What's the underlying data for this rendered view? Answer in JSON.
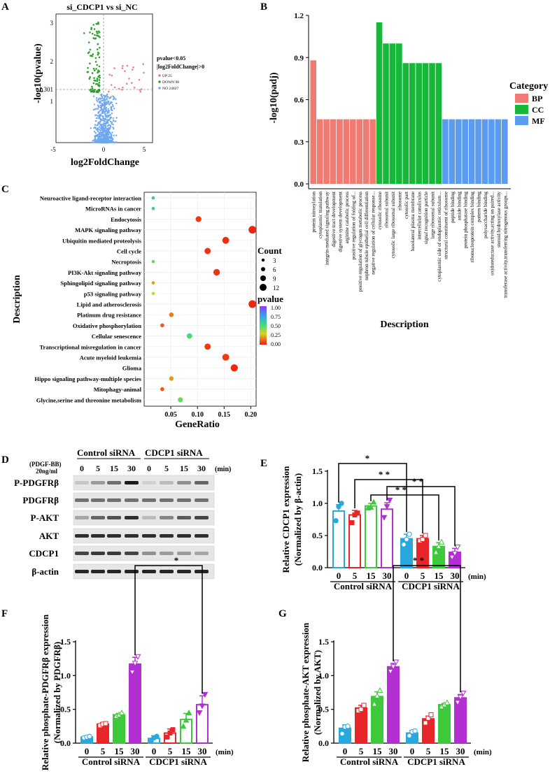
{
  "figure": {
    "panels": {
      "a": "A",
      "b": "B",
      "c": "C",
      "d": "D",
      "e": "E",
      "f": "F",
      "g": "G"
    },
    "time_unit": "(min)",
    "time_labels": [
      "0",
      "5",
      "15",
      "30",
      "0",
      "5",
      "15",
      "30"
    ],
    "group_labels": [
      "Control siRNA",
      "CDCP1 siRNA"
    ]
  },
  "panel_a": {
    "title": "si_CDCP1 vs si_NC",
    "xlabel": "log2FoldChange",
    "ylabel": "-log10(pvalue)",
    "xticks": [
      "-5",
      "0",
      "5"
    ],
    "yticks": [
      "1",
      "1.301",
      "2",
      "3"
    ],
    "legend_title_1": "pvalue<0.05",
    "legend_title_2": "|log2FoldChange|>0",
    "legend": [
      {
        "label": "UP 25",
        "color": "#f08080"
      },
      {
        "label": "DOWN 98",
        "color": "#2ca02c"
      },
      {
        "label": "NO 24827",
        "color": "#6fa8ef"
      }
    ]
  },
  "panel_b": {
    "ylabel": "-log10(padj)",
    "xlabel": "Description",
    "legend_title": "Category",
    "legend": [
      {
        "label": "BP",
        "color": "#f07b72"
      },
      {
        "label": "CC",
        "color": "#17b83a"
      },
      {
        "label": "MF",
        "color": "#5b9cf0"
      }
    ]
  },
  "panel_c": {
    "ylabel": "Description",
    "xlabel": "GeneRatio",
    "count_title": "Count",
    "count_labels": [
      "3",
      "6",
      "9",
      "12"
    ],
    "pvalue_title": "pvalue",
    "pvalue_ticks": [
      "1.00",
      "0.75",
      "0.50",
      "0.25",
      "0.00"
    ]
  },
  "panel_d": {
    "treatment_label": "(PDGF-BB)",
    "dose_label": "20ng/ml",
    "rows": [
      "P-PDGFRβ",
      "PDGFRβ",
      "P-AKT",
      "AKT",
      "CDCP1",
      "β-actin"
    ]
  },
  "panel_e": {
    "ylabel_1": "Relative CDCP1 expression",
    "ylabel_2": "(Normalized by β-actin)"
  },
  "panel_f": {
    "ylabel_1": "Relative phosphate-PDGFRβ expression",
    "ylabel_2": "(Normalized by PDGFRβ)"
  },
  "panel_g": {
    "ylabel_1": "Relative phosphate-AKT expression",
    "ylabel_2": "(Normalized by AKT)"
  },
  "chart_data": [
    {
      "id": "A",
      "type": "scatter",
      "title": "si_CDCP1 vs si_NC",
      "xlabel": "log2FoldChange",
      "ylabel": "-log10(pvalue)",
      "xlim": [
        -5.5,
        5.5
      ],
      "ylim": [
        0,
        3.4
      ],
      "threshold_y": 1.301,
      "series": [
        {
          "name": "UP 25",
          "color": "#f08080"
        },
        {
          "name": "DOWN 98",
          "color": "#2ca02c"
        },
        {
          "name": "NO 24827",
          "color": "#6fa8ef"
        }
      ]
    },
    {
      "id": "B",
      "type": "bar",
      "title": "",
      "xlabel": "Description",
      "ylabel": "-log10(padj)",
      "ylim": [
        0,
        1.2
      ],
      "yticks": [
        0.0,
        0.3,
        0.6,
        0.9,
        1.2
      ],
      "categories": [
        "protein nitrosylation",
        "cytoplasmic translation",
        "integrin-mediated signaling pathway",
        "digestive tract development",
        "digestive system development",
        "arginine catabolic process",
        "positive regulation of folding of...",
        "positive regulation of glycogen metabolic process",
        "nephron tubule epithelial cell differentiation",
        "negative regulation of cellular response...",
        "cytosolic ribosome",
        "ribosomal subunit",
        "cytosolic large ribosomal subunit",
        "ribosome",
        "cytosolic part",
        "basolateral plasma membrane",
        "intercellular canaliculus",
        "signal recognition particle",
        "large ribosomal subunit",
        "cytoplasmic side of endoplasmic reticulum...",
        "structural constituent of ribosome",
        "peptide binding",
        "amide binding",
        "protein phosphatase binding",
        "ribonucleoprotein complex binding",
        "pattern binding",
        "polysaccharide binding",
        "oxidoreductase activity,acting on paired...",
        "steroid hydroxylase activity",
        "transferase activity,transferring nitrogenous groups..."
      ],
      "values": [
        0.88,
        0.46,
        0.46,
        0.46,
        0.46,
        0.46,
        0.46,
        0.46,
        0.46,
        0.46,
        1.15,
        1.0,
        1.0,
        1.0,
        0.86,
        0.86,
        0.86,
        0.86,
        0.86,
        0.86,
        0.46,
        0.46,
        0.46,
        0.46,
        0.46,
        0.46,
        0.46,
        0.46,
        0.46,
        0.46
      ],
      "category": [
        "BP",
        "BP",
        "BP",
        "BP",
        "BP",
        "BP",
        "BP",
        "BP",
        "BP",
        "BP",
        "CC",
        "CC",
        "CC",
        "CC",
        "CC",
        "CC",
        "CC",
        "CC",
        "CC",
        "CC",
        "MF",
        "MF",
        "MF",
        "MF",
        "MF",
        "MF",
        "MF",
        "MF",
        "MF",
        "MF"
      ]
    },
    {
      "id": "C",
      "type": "scatter",
      "title": "",
      "xlabel": "GeneRatio",
      "ylabel": "Description",
      "xlim": [
        0.0,
        0.21
      ],
      "xticks": [
        0.05,
        0.1,
        0.15,
        0.2
      ],
      "categories": [
        "Neuroactive ligand-receptor interaction",
        "MicroRNAs in cancer",
        "Endocytosis",
        "MAPK signaling pathway",
        "Ubiquitin mediated proteolysis",
        "Cell cycle",
        "Necroptosis",
        "PI3K-Akt signaling pathway",
        "Sphingolipid signaling pathway",
        "p53 signaling pathway",
        "Lipid and atherosclerosis",
        "Platinum drug resistance",
        "Oxidative phosphorylation",
        "Cellular senescence",
        "Transcriptional misregulation in cancer",
        "Acute myeloid leukemia",
        "Glioma",
        "Hippo signaling pathway-multiple species",
        "Mitophagy-animal",
        "Glycine,serine and threonine metabolism"
      ],
      "gene_ratio": [
        0.017,
        0.017,
        0.102,
        0.203,
        0.153,
        0.119,
        0.017,
        0.136,
        0.017,
        0.017,
        0.203,
        0.051,
        0.034,
        0.085,
        0.119,
        0.153,
        0.169,
        0.051,
        0.034,
        0.068
      ],
      "count": [
        1,
        1,
        6,
        12,
        9,
        7,
        1,
        8,
        1,
        1,
        12,
        3,
        2,
        5,
        7,
        9,
        10,
        3,
        2,
        4
      ],
      "pvalue": [
        0.62,
        0.62,
        0.05,
        0.02,
        0.03,
        0.04,
        0.45,
        0.04,
        0.2,
        0.3,
        0.02,
        0.15,
        0.1,
        0.5,
        0.05,
        0.05,
        0.02,
        0.2,
        0.1,
        0.45
      ]
    },
    {
      "id": "E",
      "type": "bar",
      "title": "",
      "xlabel": "(min)",
      "ylabel": "Relative CDCP1 expression",
      "ylim": [
        0,
        1.5
      ],
      "yticks": [
        0.0,
        0.5,
        1.0,
        1.5
      ],
      "categories": [
        "0",
        "5",
        "15",
        "30",
        "0",
        "5",
        "15",
        "30"
      ],
      "groups": [
        "Control siRNA",
        "Control siRNA",
        "Control siRNA",
        "Control siRNA",
        "CDCP1 siRNA",
        "CDCP1 siRNA",
        "CDCP1 siRNA",
        "CDCP1 siRNA"
      ],
      "values": [
        0.88,
        0.82,
        0.96,
        0.91,
        0.45,
        0.45,
        0.33,
        0.24
      ],
      "errors": [
        0.1,
        0.07,
        0.04,
        0.1,
        0.07,
        0.05,
        0.06,
        0.06
      ],
      "points": [
        [
          0.73,
          0.95,
          1.0
        ],
        [
          0.7,
          0.82,
          0.85
        ],
        [
          0.93,
          0.94,
          1.02
        ],
        [
          0.78,
          0.95,
          1.05
        ],
        [
          0.36,
          0.44,
          0.52
        ],
        [
          0.42,
          0.44,
          0.5
        ],
        [
          0.24,
          0.33,
          0.4
        ],
        [
          0.16,
          0.22,
          0.32
        ]
      ],
      "colors": [
        "#29a8e0",
        "#e8262a",
        "#3ec83b",
        "#b22fd1",
        "#29a8e0",
        "#e8262a",
        "#3ec83b",
        "#b22fd1"
      ],
      "filled": [
        false,
        false,
        false,
        false,
        true,
        true,
        true,
        true
      ],
      "significance": [
        {
          "from": 0,
          "to": 4,
          "label": "*"
        },
        {
          "from": 1,
          "to": 5,
          "label": "* *"
        },
        {
          "from": 2,
          "to": 6,
          "label": "* *"
        },
        {
          "from": 3,
          "to": 7,
          "label": "* *"
        }
      ]
    },
    {
      "id": "F",
      "type": "bar",
      "title": "",
      "xlabel": "(min)",
      "ylabel": "Relative phosphate-PDGFRβ expression",
      "ylim": [
        0,
        1.5
      ],
      "yticks": [
        0.0,
        0.5,
        1.0,
        1.5
      ],
      "categories": [
        "0",
        "5",
        "15",
        "30",
        "0",
        "5",
        "15",
        "30"
      ],
      "groups": [
        "Control siRNA",
        "Control siRNA",
        "Control siRNA",
        "Control siRNA",
        "CDCP1 siRNA",
        "CDCP1 siRNA",
        "CDCP1 siRNA",
        "CDCP1 siRNA"
      ],
      "values": [
        0.09,
        0.28,
        0.42,
        1.17,
        0.07,
        0.15,
        0.35,
        0.57
      ],
      "errors": [
        0.01,
        0.02,
        0.02,
        0.1,
        0.04,
        0.06,
        0.09,
        0.13
      ],
      "points": [
        [
          0.08,
          0.09,
          0.1
        ],
        [
          0.26,
          0.28,
          0.29
        ],
        [
          0.4,
          0.42,
          0.45
        ],
        [
          1.05,
          1.18,
          1.28
        ],
        [
          0.03,
          0.08,
          0.1
        ],
        [
          0.09,
          0.15,
          0.2
        ],
        [
          0.25,
          0.34,
          0.45
        ],
        [
          0.45,
          0.55,
          0.72
        ]
      ],
      "colors": [
        "#29a8e0",
        "#e8262a",
        "#3ec83b",
        "#b22fd1",
        "#29a8e0",
        "#e8262a",
        "#3ec83b",
        "#b22fd1"
      ],
      "filled": [
        true,
        true,
        true,
        true,
        false,
        false,
        false,
        false
      ],
      "significance": [
        {
          "from": 3,
          "to": 7,
          "label": "*"
        }
      ]
    },
    {
      "id": "G",
      "type": "bar",
      "title": "",
      "xlabel": "(min)",
      "ylabel": "Relative phosphate-AKT expression",
      "ylim": [
        0,
        1.5
      ],
      "yticks": [
        0.0,
        0.5,
        1.0,
        1.5
      ],
      "categories": [
        "0",
        "5",
        "15",
        "30",
        "0",
        "5",
        "15",
        "30"
      ],
      "groups": [
        "Control siRNA",
        "Control siRNA",
        "Control siRNA",
        "Control siRNA",
        "CDCP1 siRNA",
        "CDCP1 siRNA",
        "CDCP1 siRNA",
        "CDCP1 siRNA"
      ],
      "values": [
        0.22,
        0.52,
        0.69,
        1.13,
        0.15,
        0.36,
        0.57,
        0.67
      ],
      "errors": [
        0.05,
        0.04,
        0.07,
        0.05,
        0.04,
        0.04,
        0.02,
        0.05
      ],
      "points": [
        [
          0.14,
          0.24,
          0.25
        ],
        [
          0.48,
          0.5,
          0.56
        ],
        [
          0.58,
          0.7,
          0.78
        ],
        [
          1.06,
          1.13,
          1.2
        ],
        [
          0.11,
          0.17,
          0.18
        ],
        [
          0.3,
          0.37,
          0.42
        ],
        [
          0.54,
          0.57,
          0.6
        ],
        [
          0.6,
          0.68,
          0.74
        ]
      ],
      "colors": [
        "#29a8e0",
        "#e8262a",
        "#3ec83b",
        "#b22fd1",
        "#29a8e0",
        "#e8262a",
        "#3ec83b",
        "#b22fd1"
      ],
      "filled": [
        true,
        true,
        true,
        true,
        true,
        true,
        true,
        true
      ],
      "significance": [
        {
          "from": 3,
          "to": 7,
          "label": "* *"
        }
      ]
    }
  ]
}
